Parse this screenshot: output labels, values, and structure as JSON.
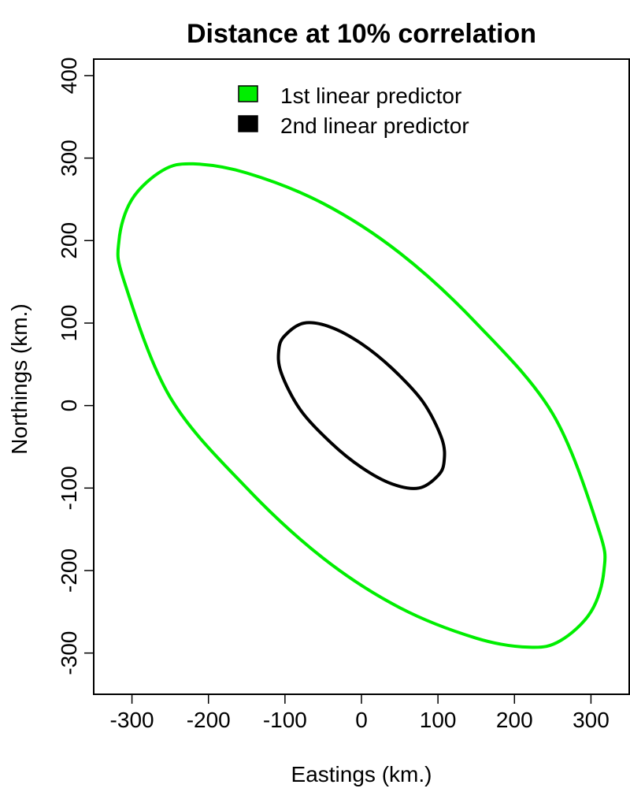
{
  "chart_data": {
    "type": "line",
    "title": "Distance at 10% correlation",
    "xlabel": "Eastings (km.)",
    "ylabel": "Northings (km.)",
    "xlim": [
      -350,
      350
    ],
    "ylim": [
      -350,
      420
    ],
    "xticks": [
      -300,
      -200,
      -100,
      0,
      100,
      200,
      300
    ],
    "yticks": [
      -300,
      -200,
      -100,
      0,
      100,
      200,
      300,
      400
    ],
    "grid": false,
    "legend": {
      "position": "top-center"
    },
    "series": [
      {
        "name": "1st linear predictor",
        "color": "#00ee00",
        "shape": "ellipse",
        "center": [
          0,
          0
        ],
        "x_extent": 318,
        "y_extent": 295,
        "points": [
          [
            -317,
            200
          ],
          [
            -300,
            250
          ],
          [
            -260,
            285
          ],
          [
            -220,
            293
          ],
          [
            -150,
            282
          ],
          [
            -50,
            245
          ],
          [
            50,
            185
          ],
          [
            150,
            100
          ],
          [
            250,
            -10
          ],
          [
            310,
            -150
          ],
          [
            317,
            -200
          ],
          [
            300,
            -250
          ],
          [
            260,
            -285
          ],
          [
            220,
            -293
          ],
          [
            150,
            -282
          ],
          [
            50,
            -245
          ],
          [
            -50,
            -185
          ],
          [
            -150,
            -100
          ],
          [
            -250,
            10
          ],
          [
            -310,
            150
          ]
        ]
      },
      {
        "name": "2nd linear predictor",
        "color": "#000000",
        "shape": "ellipse",
        "center": [
          0,
          0
        ],
        "x_extent": 108,
        "y_extent": 100,
        "points": [
          [
            -108,
            68
          ],
          [
            -100,
            85
          ],
          [
            -75,
            100
          ],
          [
            -40,
            95
          ],
          [
            0,
            75
          ],
          [
            40,
            45
          ],
          [
            80,
            5
          ],
          [
            105,
            -40
          ],
          [
            108,
            -68
          ],
          [
            100,
            -85
          ],
          [
            75,
            -100
          ],
          [
            40,
            -95
          ],
          [
            0,
            -75
          ],
          [
            -40,
            -45
          ],
          [
            -80,
            -5
          ],
          [
            -105,
            40
          ]
        ]
      }
    ]
  }
}
